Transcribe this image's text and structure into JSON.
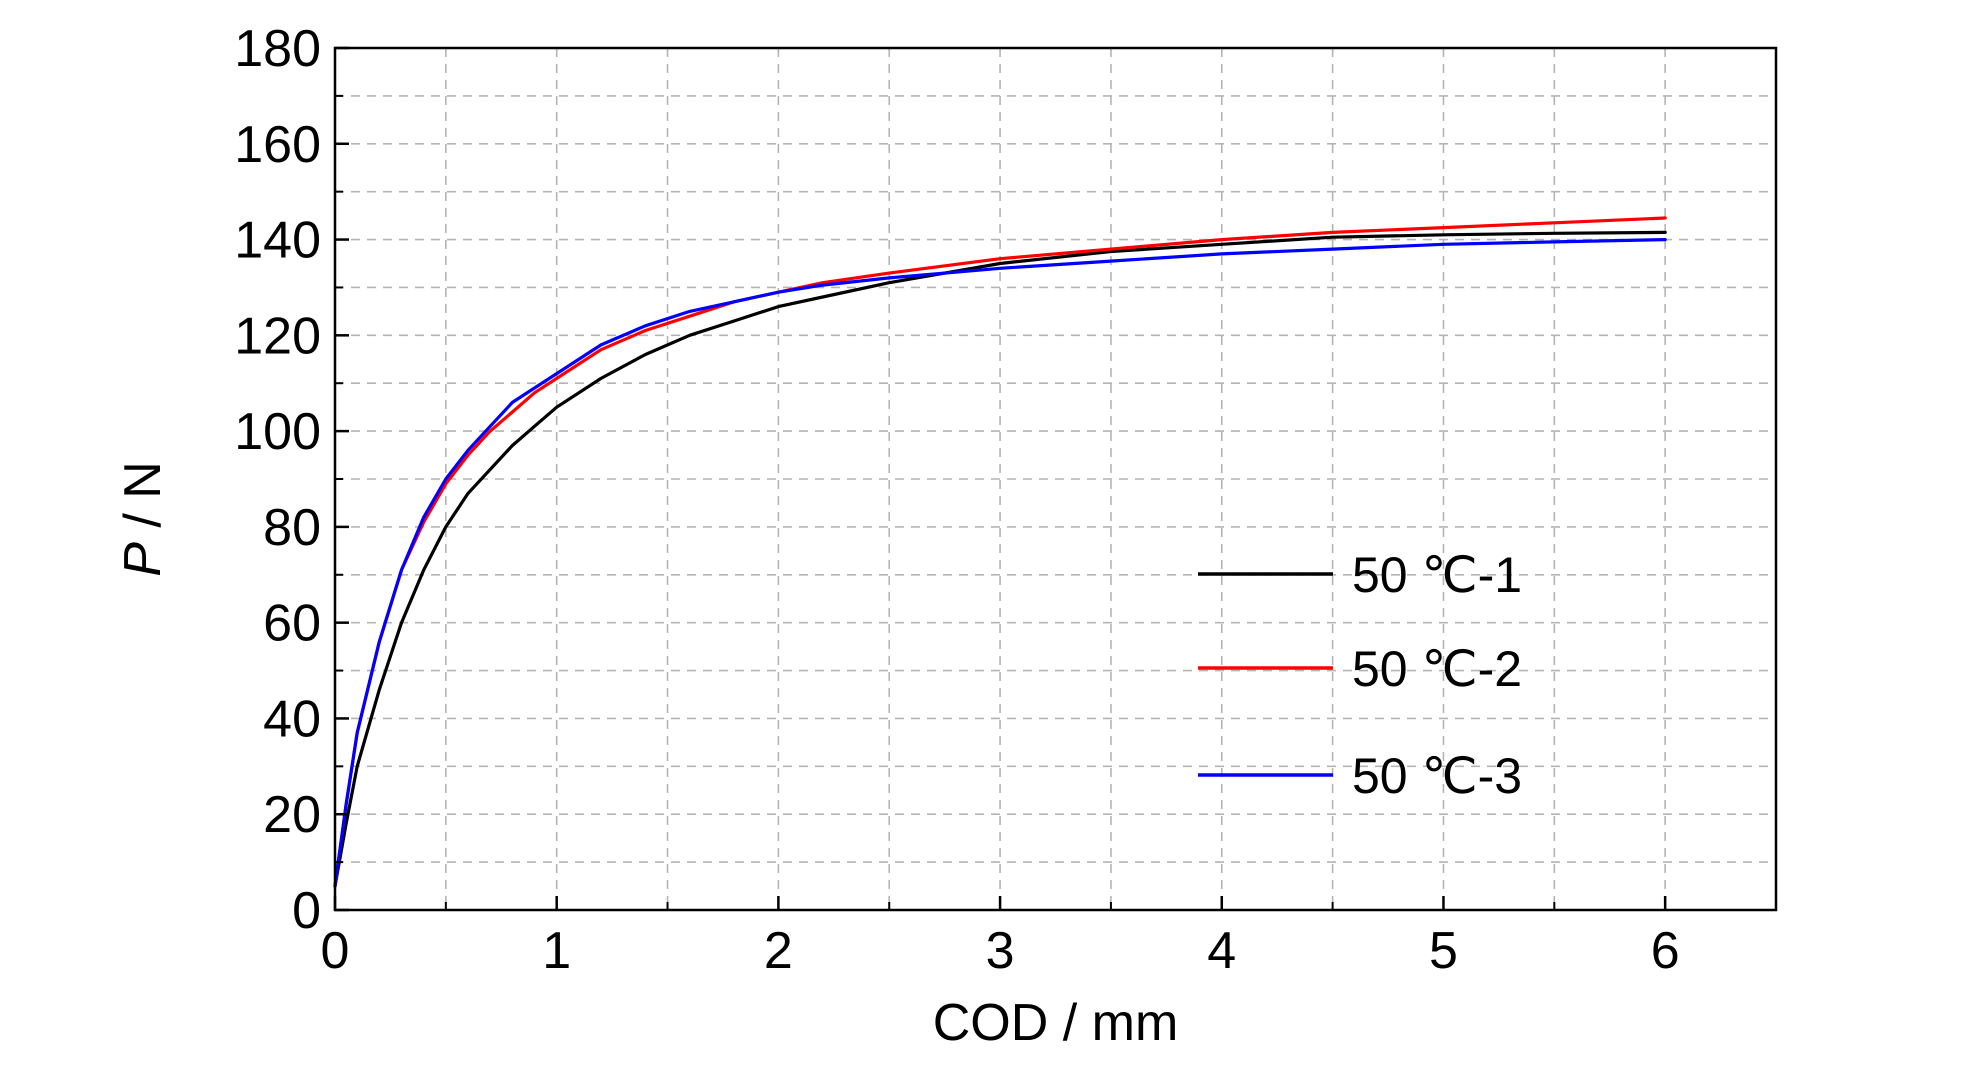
{
  "chart_data": {
    "type": "line",
    "xlabel": "COD / mm",
    "ylabel_italic": "P",
    "ylabel_rest": " / N",
    "xlim": [
      0,
      6.5
    ],
    "ylim": [
      0,
      180
    ],
    "xticks": [
      0,
      1,
      2,
      3,
      4,
      5,
      6
    ],
    "yticks": [
      0,
      20,
      40,
      60,
      80,
      100,
      120,
      140,
      160,
      180
    ],
    "grid": true,
    "legend_position": "lower-right",
    "series": [
      {
        "name": "50 ℃-1",
        "color": "#000000",
        "x": [
          0,
          0.05,
          0.1,
          0.2,
          0.3,
          0.4,
          0.5,
          0.6,
          0.7,
          0.8,
          0.9,
          1.0,
          1.2,
          1.4,
          1.6,
          1.8,
          2.0,
          2.2,
          2.5,
          3.0,
          3.5,
          4.0,
          4.5,
          5.0,
          5.5,
          6.0
        ],
        "y": [
          5,
          18,
          30,
          46,
          60,
          71,
          80,
          87,
          92,
          97,
          101,
          105,
          111,
          116,
          120,
          123,
          126,
          128,
          131,
          135,
          137.5,
          139,
          140.5,
          141,
          141.3,
          141.5
        ]
      },
      {
        "name": "50 ℃-2",
        "color": "#ff0000",
        "x": [
          0,
          0.05,
          0.1,
          0.2,
          0.3,
          0.4,
          0.5,
          0.6,
          0.7,
          0.8,
          0.9,
          1.0,
          1.2,
          1.4,
          1.6,
          1.8,
          2.0,
          2.2,
          2.5,
          3.0,
          3.5,
          4.0,
          4.5,
          5.0,
          5.5,
          6.0
        ],
        "y": [
          5,
          22,
          37,
          56,
          71,
          81,
          89,
          95,
          100,
          104,
          108,
          111,
          117,
          121,
          124,
          127,
          129,
          131,
          133,
          136,
          138,
          140,
          141.5,
          142.5,
          143.5,
          144.5
        ]
      },
      {
        "name": "50 ℃-3",
        "color": "#0000ff",
        "x": [
          0,
          0.05,
          0.1,
          0.2,
          0.3,
          0.4,
          0.5,
          0.6,
          0.7,
          0.8,
          0.9,
          1.0,
          1.2,
          1.4,
          1.6,
          1.8,
          2.0,
          2.2,
          2.5,
          3.0,
          3.5,
          4.0,
          4.5,
          5.0,
          5.5,
          6.0
        ],
        "y": [
          5,
          22,
          37,
          56,
          71,
          82,
          90,
          96,
          101,
          106,
          109,
          112,
          118,
          122,
          125,
          127,
          129,
          130.5,
          132,
          134,
          135.5,
          137,
          138,
          139,
          139.5,
          140
        ]
      }
    ]
  }
}
